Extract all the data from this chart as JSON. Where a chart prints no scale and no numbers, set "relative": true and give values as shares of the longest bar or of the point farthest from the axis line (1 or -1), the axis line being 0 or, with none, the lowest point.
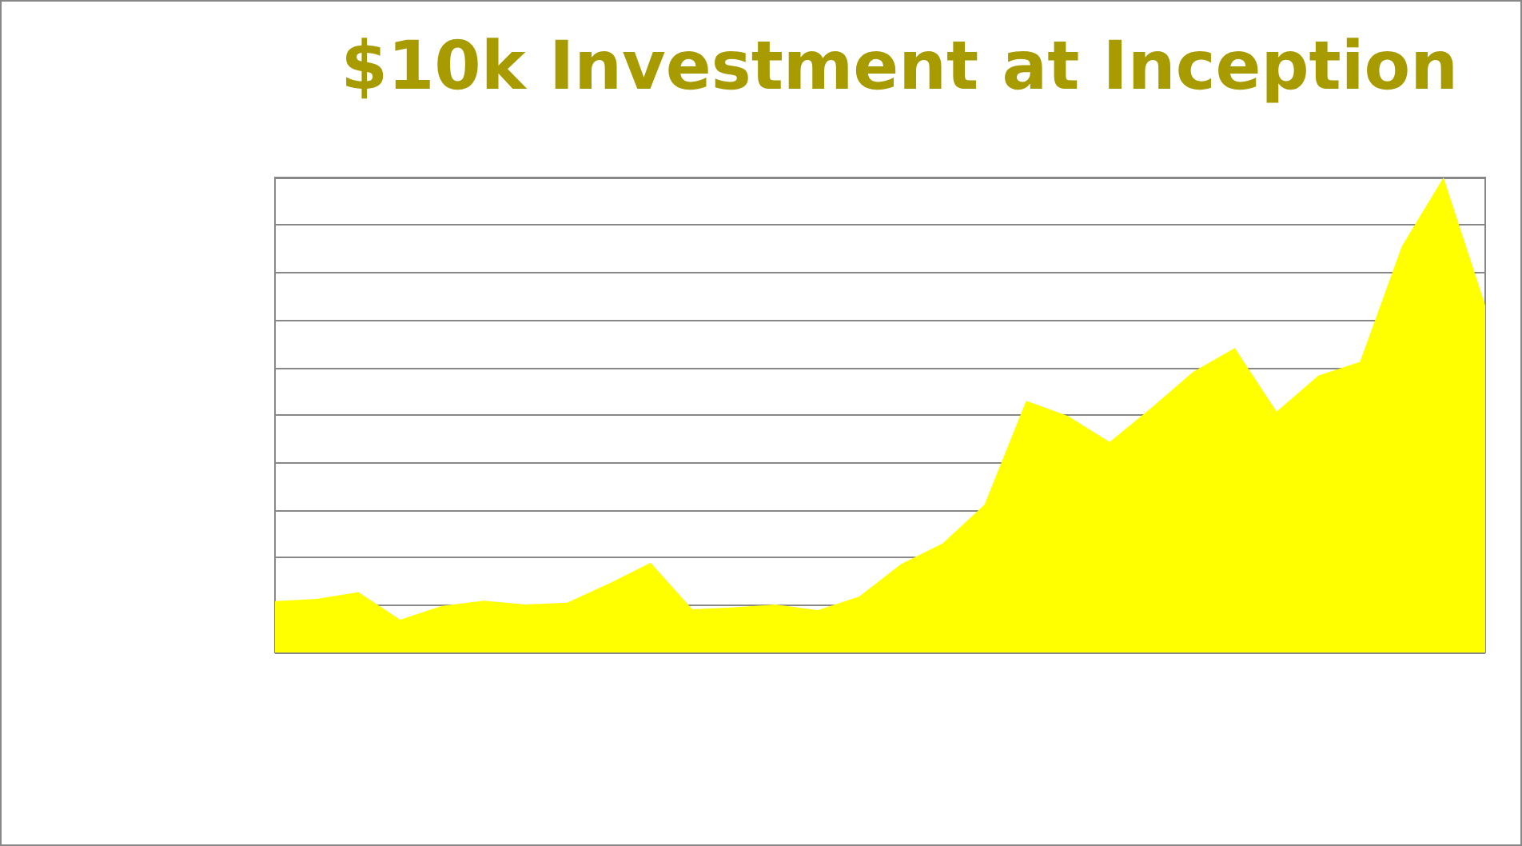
{
  "chart_data": {
    "type": "area",
    "title": "$10k Investment at Inception",
    "relative": true,
    "grid": "y",
    "marker": "none",
    "categories": [
      null,
      null,
      null,
      null,
      null,
      null,
      null,
      null,
      null,
      null,
      null,
      null,
      null,
      null,
      null,
      null,
      null,
      null,
      null,
      null,
      null,
      null,
      null,
      null,
      null,
      null,
      null,
      null,
      null,
      null
    ],
    "series": [
      {
        "color": "#ffff00",
        "values": [
          0.108,
          0.113,
          0.127,
          0.069,
          0.098,
          0.109,
          0.101,
          0.105,
          0.145,
          0.189,
          0.091,
          0.095,
          0.101,
          0.089,
          0.118,
          0.186,
          0.23,
          0.311,
          0.53,
          0.498,
          0.443,
          0.515,
          0.591,
          0.641,
          0.507,
          0.583,
          0.612,
          0.855,
          1,
          0.731
        ]
      }
    ]
  }
}
